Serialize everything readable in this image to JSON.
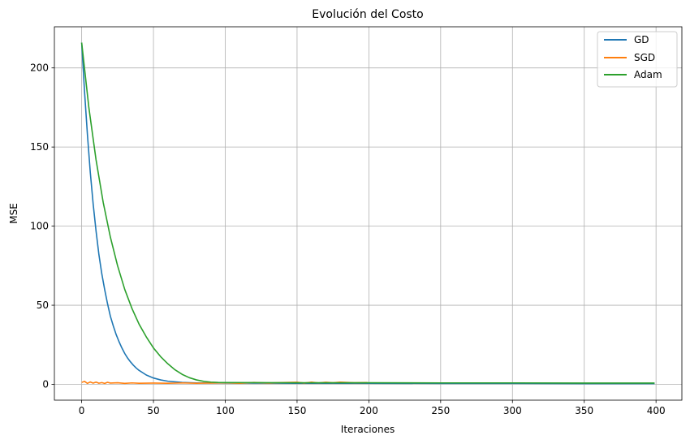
{
  "chart_data": {
    "type": "line",
    "title": "Evolución del Costo",
    "xlabel": "Iteraciones",
    "ylabel": "MSE",
    "xlim": [
      -19,
      418
    ],
    "ylim": [
      -10,
      226
    ],
    "xticks": [
      0,
      50,
      100,
      150,
      200,
      250,
      300,
      350,
      400
    ],
    "yticks": [
      0,
      50,
      100,
      150,
      200
    ],
    "grid": true,
    "legend_position": "top-right",
    "series": [
      {
        "name": "GD",
        "color": "#1f77b4",
        "points": [
          [
            0,
            216
          ],
          [
            2,
            185
          ],
          [
            4,
            158
          ],
          [
            6,
            134
          ],
          [
            8,
            114
          ],
          [
            10,
            97
          ],
          [
            12,
            82
          ],
          [
            14,
            70
          ],
          [
            16,
            60
          ],
          [
            18,
            51
          ],
          [
            20,
            43
          ],
          [
            22,
            37
          ],
          [
            24,
            31.5
          ],
          [
            26,
            27
          ],
          [
            28,
            23
          ],
          [
            30,
            19.5
          ],
          [
            32,
            16.6
          ],
          [
            34,
            14.2
          ],
          [
            36,
            12.1
          ],
          [
            38,
            10.3
          ],
          [
            40,
            8.8
          ],
          [
            45,
            5.9
          ],
          [
            50,
            4.0
          ],
          [
            55,
            2.8
          ],
          [
            60,
            2.0
          ],
          [
            70,
            1.2
          ],
          [
            80,
            0.9
          ],
          [
            100,
            0.8
          ],
          [
            150,
            0.7
          ],
          [
            200,
            0.7
          ],
          [
            250,
            0.6
          ],
          [
            300,
            0.6
          ],
          [
            350,
            0.5
          ],
          [
            399,
            0.5
          ]
        ]
      },
      {
        "name": "SGD",
        "color": "#ff7f0e",
        "points": [
          [
            0,
            1.2
          ],
          [
            2,
            1.9
          ],
          [
            4,
            0.6
          ],
          [
            6,
            1.5
          ],
          [
            8,
            0.8
          ],
          [
            10,
            1.4
          ],
          [
            12,
            0.7
          ],
          [
            14,
            1.1
          ],
          [
            16,
            0.6
          ],
          [
            18,
            1.3
          ],
          [
            20,
            0.8
          ],
          [
            25,
            1.0
          ],
          [
            30,
            0.6
          ],
          [
            35,
            0.9
          ],
          [
            40,
            0.7
          ],
          [
            50,
            0.8
          ],
          [
            60,
            0.7
          ],
          [
            70,
            0.9
          ],
          [
            80,
            0.7
          ],
          [
            90,
            0.8
          ],
          [
            100,
            1.0
          ],
          [
            110,
            0.7
          ],
          [
            120,
            1.2
          ],
          [
            130,
            0.8
          ],
          [
            140,
            1.1
          ],
          [
            150,
            1.3
          ],
          [
            155,
            0.8
          ],
          [
            160,
            1.4
          ],
          [
            165,
            0.9
          ],
          [
            170,
            1.3
          ],
          [
            175,
            1.0
          ],
          [
            180,
            1.4
          ],
          [
            185,
            1.2
          ],
          [
            190,
            1.0
          ],
          [
            199,
            1.1
          ]
        ]
      },
      {
        "name": "Adam",
        "color": "#2ca02c",
        "points": [
          [
            0,
            216
          ],
          [
            5,
            175
          ],
          [
            10,
            142
          ],
          [
            15,
            115
          ],
          [
            20,
            93
          ],
          [
            25,
            75
          ],
          [
            30,
            60
          ],
          [
            35,
            48
          ],
          [
            40,
            38
          ],
          [
            45,
            30
          ],
          [
            50,
            23
          ],
          [
            55,
            17.5
          ],
          [
            60,
            13
          ],
          [
            65,
            9.2
          ],
          [
            70,
            6.3
          ],
          [
            75,
            4.2
          ],
          [
            80,
            2.8
          ],
          [
            85,
            1.9
          ],
          [
            90,
            1.4
          ],
          [
            95,
            1.2
          ],
          [
            100,
            1.1
          ],
          [
            150,
            1.0
          ],
          [
            200,
            1.0
          ],
          [
            250,
            0.9
          ],
          [
            300,
            0.9
          ],
          [
            350,
            0.8
          ],
          [
            399,
            0.8
          ]
        ]
      }
    ]
  }
}
